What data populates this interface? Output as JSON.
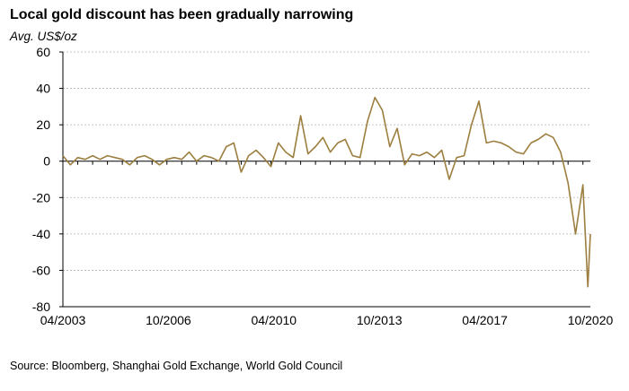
{
  "title": "Local gold discount has been gradually narrowing",
  "units_label": "Avg. US$/oz",
  "source": "Source: Bloomberg, Shanghai Gold Exchange, World Gold Council",
  "chart_data": {
    "type": "line",
    "title": "Local gold discount has been gradually narrowing",
    "ylabel": "Avg. US$/oz",
    "xlabel": "",
    "ylim": [
      -80,
      60
    ],
    "yticks": [
      -80,
      -60,
      -40,
      -20,
      0,
      20,
      40,
      60
    ],
    "xtick_labels": [
      "04/2003",
      "10/2006",
      "04/2010",
      "10/2013",
      "04/2017",
      "10/2020"
    ],
    "grid": "horizontal",
    "series_color": "#9c7e3f",
    "series": [
      {
        "name": "",
        "points": [
          [
            "2003-04",
            3
          ],
          [
            "2003-07",
            -2
          ],
          [
            "2003-10",
            2
          ],
          [
            "2004-01",
            1
          ],
          [
            "2004-04",
            3
          ],
          [
            "2004-07",
            1
          ],
          [
            "2004-10",
            3
          ],
          [
            "2005-01",
            2
          ],
          [
            "2005-04",
            1
          ],
          [
            "2005-07",
            -2
          ],
          [
            "2005-10",
            2
          ],
          [
            "2006-01",
            3
          ],
          [
            "2006-04",
            1
          ],
          [
            "2006-07",
            -2
          ],
          [
            "2006-10",
            1
          ],
          [
            "2007-01",
            2
          ],
          [
            "2007-04",
            1
          ],
          [
            "2007-07",
            5
          ],
          [
            "2007-10",
            0
          ],
          [
            "2008-01",
            3
          ],
          [
            "2008-04",
            2
          ],
          [
            "2008-07",
            0
          ],
          [
            "2008-10",
            8
          ],
          [
            "2009-01",
            10
          ],
          [
            "2009-04",
            -6
          ],
          [
            "2009-07",
            3
          ],
          [
            "2009-10",
            6
          ],
          [
            "2010-01",
            2
          ],
          [
            "2010-04",
            -3
          ],
          [
            "2010-07",
            10
          ],
          [
            "2010-10",
            5
          ],
          [
            "2011-01",
            2
          ],
          [
            "2011-04",
            25
          ],
          [
            "2011-07",
            4
          ],
          [
            "2011-10",
            8
          ],
          [
            "2012-01",
            13
          ],
          [
            "2012-04",
            5
          ],
          [
            "2012-07",
            10
          ],
          [
            "2012-10",
            12
          ],
          [
            "2013-01",
            3
          ],
          [
            "2013-04",
            2
          ],
          [
            "2013-07",
            22
          ],
          [
            "2013-10",
            35
          ],
          [
            "2014-01",
            28
          ],
          [
            "2014-04",
            8
          ],
          [
            "2014-07",
            18
          ],
          [
            "2014-10",
            -2
          ],
          [
            "2015-01",
            4
          ],
          [
            "2015-04",
            3
          ],
          [
            "2015-07",
            5
          ],
          [
            "2015-10",
            2
          ],
          [
            "2016-01",
            6
          ],
          [
            "2016-04",
            -10
          ],
          [
            "2016-07",
            2
          ],
          [
            "2016-10",
            3
          ],
          [
            "2017-01",
            20
          ],
          [
            "2017-04",
            33
          ],
          [
            "2017-07",
            10
          ],
          [
            "2017-10",
            11
          ],
          [
            "2018-01",
            10
          ],
          [
            "2018-04",
            8
          ],
          [
            "2018-07",
            5
          ],
          [
            "2018-10",
            4
          ],
          [
            "2019-01",
            10
          ],
          [
            "2019-04",
            12
          ],
          [
            "2019-07",
            15
          ],
          [
            "2019-10",
            13
          ],
          [
            "2020-01",
            5
          ],
          [
            "2020-04",
            -12
          ],
          [
            "2020-07",
            -40
          ],
          [
            "2020-10",
            -13
          ],
          [
            "2020-12",
            -69
          ],
          [
            "2021-01",
            -40
          ]
        ]
      }
    ]
  }
}
